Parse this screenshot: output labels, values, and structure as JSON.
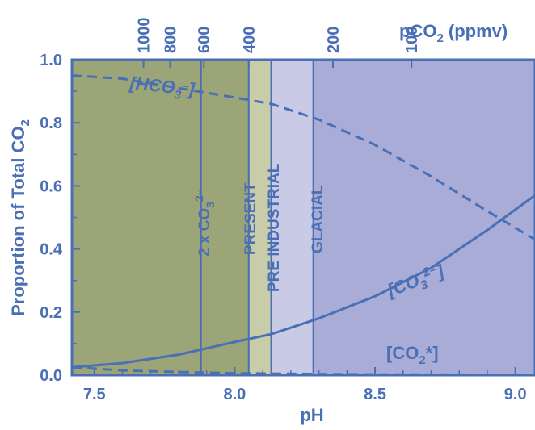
{
  "chart_data": {
    "type": "line",
    "xlabel": "pH",
    "ylabel": "Proportion of Total CO2",
    "xlim": [
      7.42,
      9.07
    ],
    "ylim": [
      0,
      1.0
    ],
    "x_ticks": [
      "7.5",
      "8.0",
      "8.5",
      "9.0"
    ],
    "y_ticks": [
      "0.0",
      "0.2",
      "0.4",
      "0.6",
      "0.8",
      "1.0"
    ],
    "top_axis": {
      "label": "pCO2  (ppmv)",
      "ticks": [
        {
          "label": "1000",
          "ph": 7.675
        },
        {
          "label": "800",
          "ph": 7.77
        },
        {
          "label": "600",
          "ph": 7.89
        },
        {
          "label": "400",
          "ph": 8.05
        },
        {
          "label": "200",
          "ph": 8.35
        },
        {
          "label": "100",
          "ph": 8.63
        }
      ]
    },
    "regions": [
      {
        "from_ph": 7.42,
        "to_ph": 8.05,
        "color": "#9ba577",
        "label": ""
      },
      {
        "from_ph": 8.05,
        "to_ph": 8.13,
        "color": "#c8cca8",
        "label": "PRESENT"
      },
      {
        "from_ph": 8.13,
        "to_ph": 8.28,
        "color": "#c9cbe6",
        "label": "PRE INDUSTRIAL"
      },
      {
        "from_ph": 8.28,
        "to_ph": 9.07,
        "color": "#a9acd6",
        "label": "GLACIAL"
      }
    ],
    "marker_lines": [
      {
        "ph": 7.88,
        "label": "2 x CO3 2-"
      },
      {
        "ph": 8.05,
        "label": ""
      },
      {
        "ph": 8.13,
        "label": ""
      },
      {
        "ph": 8.28,
        "label": ""
      }
    ],
    "series": [
      {
        "name": "[HCO3-]",
        "style": "dashed",
        "x": [
          7.42,
          7.6,
          7.8,
          8.0,
          8.13,
          8.3,
          8.5,
          8.7,
          8.9,
          9.07
        ],
        "y": [
          0.95,
          0.94,
          0.91,
          0.88,
          0.86,
          0.81,
          0.73,
          0.63,
          0.52,
          0.43
        ]
      },
      {
        "name": "[CO3 2-]",
        "style": "solid",
        "x": [
          7.42,
          7.6,
          7.8,
          8.0,
          8.13,
          8.3,
          8.5,
          8.7,
          8.9,
          9.07
        ],
        "y": [
          0.025,
          0.038,
          0.065,
          0.105,
          0.13,
          0.18,
          0.25,
          0.34,
          0.46,
          0.57
        ]
      },
      {
        "name": "[CO2*]",
        "style": "dashed",
        "x": [
          7.42,
          7.6,
          7.8,
          8.0,
          8.5,
          9.07
        ],
        "y": [
          0.025,
          0.015,
          0.01,
          0.006,
          0.002,
          0.001
        ]
      }
    ],
    "colors": {
      "line": "#4a6fb5",
      "text": "#4a6fb5"
    }
  }
}
